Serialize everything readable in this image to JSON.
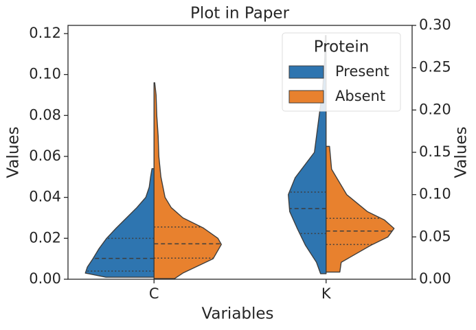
{
  "chart_data": {
    "type": "split-violin",
    "title": "Plot in Paper",
    "xlabel": "Variables",
    "ylabel": "Values",
    "y2label": "Values",
    "categories": [
      "C",
      "K"
    ],
    "category_axes": [
      "y",
      "y2"
    ],
    "ylim": [
      0,
      0.124
    ],
    "yticks": [
      {
        "value": 0,
        "label": "0.00"
      },
      {
        "value": 0.02,
        "label": "0.02"
      },
      {
        "value": 0.04,
        "label": "0.04"
      },
      {
        "value": 0.06,
        "label": "0.06"
      },
      {
        "value": 0.08,
        "label": "0.08"
      },
      {
        "value": 0.1,
        "label": "0.10"
      },
      {
        "value": 0.12,
        "label": "0.12"
      }
    ],
    "y2lim": [
      0,
      0.3
    ],
    "y2ticks": [
      {
        "value": 0,
        "label": "0.00"
      },
      {
        "value": 0.05,
        "label": "0.05"
      },
      {
        "value": 0.1,
        "label": "0.10"
      },
      {
        "value": 0.15,
        "label": "0.15"
      },
      {
        "value": 0.2,
        "label": "0.20"
      },
      {
        "value": 0.25,
        "label": "0.25"
      },
      {
        "value": 0.3,
        "label": "0.30"
      }
    ],
    "legend_title": "Protein",
    "legend_position": "upper right",
    "series": [
      {
        "name": "Present",
        "color": "#2e75b0",
        "side": "left",
        "quartiles": [
          [
            0.004,
            0.0102,
            0.02
          ],
          [
            0.054,
            0.0835,
            0.103
          ]
        ],
        "profiles": [
          {
            "y": [
              0.001,
              0.003,
              0.006,
              0.01,
              0.015,
              0.02,
              0.025,
              0.03,
              0.035,
              0.04,
              0.045,
              0.05,
              0.054
            ],
            "width": [
              0.7,
              1.0,
              0.97,
              0.89,
              0.8,
              0.69,
              0.55,
              0.4,
              0.25,
              0.12,
              0.07,
              0.05,
              0.03
            ]
          },
          {
            "y": [
              0.0065,
              0.02,
              0.04,
              0.06,
              0.08,
              0.1,
              0.12,
              0.15,
              0.2,
              0.225,
              0.26,
              0.288
            ],
            "width": [
              0.08,
              0.14,
              0.3,
              0.42,
              0.53,
              0.55,
              0.45,
              0.17,
              0.09,
              0.05,
              0.02,
              0.01
            ]
          }
        ]
      },
      {
        "name": "Absent",
        "color": "#e8812e",
        "side": "right",
        "quartiles": [
          [
            0.0103,
            0.0173,
            0.0255
          ],
          [
            0.041,
            0.057,
            0.072
          ]
        ],
        "profiles": [
          {
            "y": [
              0.0003,
              0.003,
              0.01,
              0.017,
              0.02,
              0.025,
              0.03,
              0.035,
              0.04,
              0.05,
              0.06,
              0.07,
              0.08,
              0.09,
              0.096
            ],
            "width": [
              0.3,
              0.42,
              0.86,
              0.98,
              0.93,
              0.72,
              0.42,
              0.25,
              0.16,
              0.1,
              0.07,
              0.06,
              0.04,
              0.03,
              0.01
            ]
          },
          {
            "y": [
              0.0085,
              0.02,
              0.04,
              0.05,
              0.06,
              0.07,
              0.08,
              0.1,
              0.13,
              0.157
            ],
            "width": [
              0.2,
              0.22,
              0.65,
              0.9,
              0.99,
              0.85,
              0.6,
              0.3,
              0.08,
              0.05
            ]
          }
        ]
      }
    ]
  }
}
